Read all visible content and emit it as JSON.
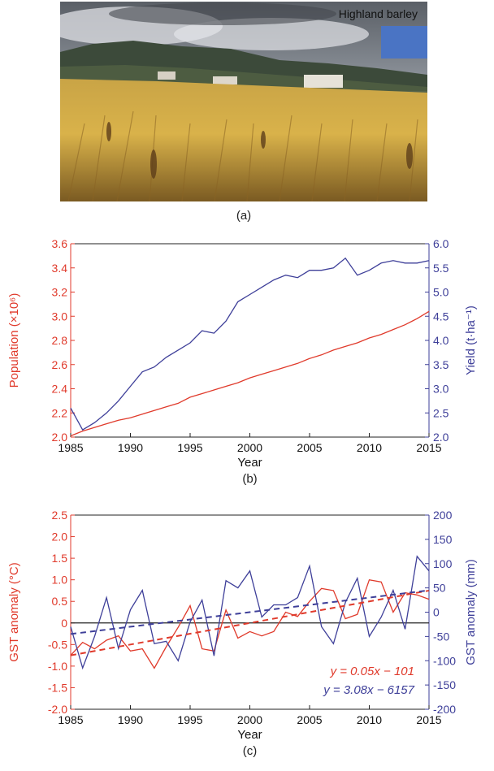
{
  "photo": {
    "caption": "Highland barley",
    "label": "(a)",
    "colors": {
      "sky_top": "#5a5f66",
      "sky_cloud": "#c9ccd1",
      "blue_patch": "#4a74c4",
      "mountain": "#3c4a3a",
      "field_light": "#d9b24a",
      "field_dark": "#7a5a22"
    }
  },
  "chart_data": [
    {
      "type": "line",
      "panel_label": "(b)",
      "xlabel": "Year",
      "ylabel_left": "Population (×10⁶)",
      "ylabel_right": "Yield (t·ha⁻¹)",
      "xlim": [
        1985,
        2015
      ],
      "ylim_left": [
        2.0,
        3.6
      ],
      "ylim_right": [
        2.0,
        6.0
      ],
      "x_ticks": [
        "1985",
        "1990",
        "1995",
        "2000",
        "2005",
        "2010",
        "2015"
      ],
      "y_left_ticks": [
        "2.0",
        "2.2",
        "2.4",
        "2.6",
        "2.8",
        "3.0",
        "3.2",
        "3.4",
        "3.6"
      ],
      "y_right_ticks": [
        "2.0",
        "2.5",
        "3.0",
        "3.5",
        "4.0",
        "4.5",
        "5.0",
        "5.5",
        "6.0"
      ],
      "x": [
        1985,
        1986,
        1987,
        1988,
        1989,
        1990,
        1991,
        1992,
        1993,
        1994,
        1995,
        1996,
        1997,
        1998,
        1999,
        2000,
        2001,
        2002,
        2003,
        2004,
        2005,
        2006,
        2007,
        2008,
        2009,
        2010,
        2011,
        2012,
        2013,
        2014,
        2015
      ],
      "series": [
        {
          "axis": "left",
          "color": "#e03a2b",
          "values": [
            2.01,
            2.05,
            2.08,
            2.11,
            2.14,
            2.16,
            2.19,
            2.22,
            2.25,
            2.28,
            2.33,
            2.36,
            2.39,
            2.42,
            2.45,
            2.49,
            2.52,
            2.55,
            2.58,
            2.61,
            2.65,
            2.68,
            2.72,
            2.75,
            2.78,
            2.82,
            2.85,
            2.89,
            2.93,
            2.98,
            3.04
          ]
        },
        {
          "axis": "right",
          "color": "#3e3f99",
          "values": [
            2.6,
            2.15,
            2.3,
            2.5,
            2.75,
            3.05,
            3.35,
            3.45,
            3.65,
            3.8,
            3.95,
            4.2,
            4.15,
            4.4,
            4.8,
            4.95,
            5.1,
            5.25,
            5.35,
            5.3,
            5.45,
            5.45,
            5.5,
            5.7,
            5.35,
            5.45,
            5.6,
            5.65,
            5.6,
            5.6,
            5.65
          ]
        }
      ]
    },
    {
      "type": "line",
      "panel_label": "(c)",
      "xlabel": "Year",
      "ylabel_left": "GST anomaly (°C)",
      "ylabel_right": "GST anomaly (mm)",
      "xlim": [
        1985,
        2015
      ],
      "ylim_left": [
        -2.0,
        2.5
      ],
      "ylim_right": [
        -200,
        200
      ],
      "x_ticks": [
        "1985",
        "1990",
        "1995",
        "2000",
        "2005",
        "2010",
        "2015"
      ],
      "y_left_ticks": [
        "-2.0",
        "-1.5",
        "-1.0",
        "-0.5",
        "0",
        "0.5",
        "1.0",
        "1.5",
        "2.0",
        "2.5"
      ],
      "y_right_ticks": [
        "-200",
        "-150",
        "-100",
        "-50",
        "0",
        "50",
        "100",
        "150",
        "200"
      ],
      "x": [
        1985,
        1986,
        1987,
        1988,
        1989,
        1990,
        1991,
        1992,
        1993,
        1994,
        1995,
        1996,
        1997,
        1998,
        1999,
        2000,
        2001,
        2002,
        2003,
        2004,
        2005,
        2006,
        2007,
        2008,
        2009,
        2010,
        2011,
        2012,
        2013,
        2014,
        2015
      ],
      "series": [
        {
          "axis": "left",
          "color": "#e03a2b",
          "values": [
            -0.75,
            -0.45,
            -0.6,
            -0.4,
            -0.3,
            -0.65,
            -0.6,
            -1.05,
            -0.55,
            -0.1,
            0.4,
            -0.6,
            -0.65,
            0.3,
            -0.35,
            -0.2,
            -0.3,
            -0.2,
            0.25,
            0.15,
            0.5,
            0.8,
            0.75,
            0.1,
            0.2,
            1.0,
            0.95,
            0.25,
            0.7,
            0.65,
            0.55
          ]
        },
        {
          "axis": "right",
          "color": "#3e3f99",
          "values": [
            -30,
            -115,
            -50,
            30,
            -75,
            5,
            45,
            -65,
            -60,
            -100,
            -20,
            25,
            -90,
            65,
            50,
            85,
            -10,
            15,
            15,
            30,
            95,
            -30,
            -65,
            20,
            70,
            -50,
            -10,
            45,
            -35,
            115,
            85
          ]
        }
      ],
      "trendlines": [
        {
          "axis": "left",
          "color": "#e03a2b",
          "style": "dashed",
          "slope": 0.05,
          "intercept": -101,
          "equation": "y = 0.05x − 101",
          "from": [
            1985,
            -0.75
          ],
          "to": [
            2015,
            0.75
          ]
        },
        {
          "axis": "right",
          "color": "#3e3f99",
          "style": "dashed",
          "slope": 3.08,
          "intercept": -6157,
          "equation": "y = 3.08x − 6157",
          "from": [
            1985,
            -45
          ],
          "to": [
            2015,
            45
          ]
        }
      ],
      "zero_line": true
    }
  ]
}
